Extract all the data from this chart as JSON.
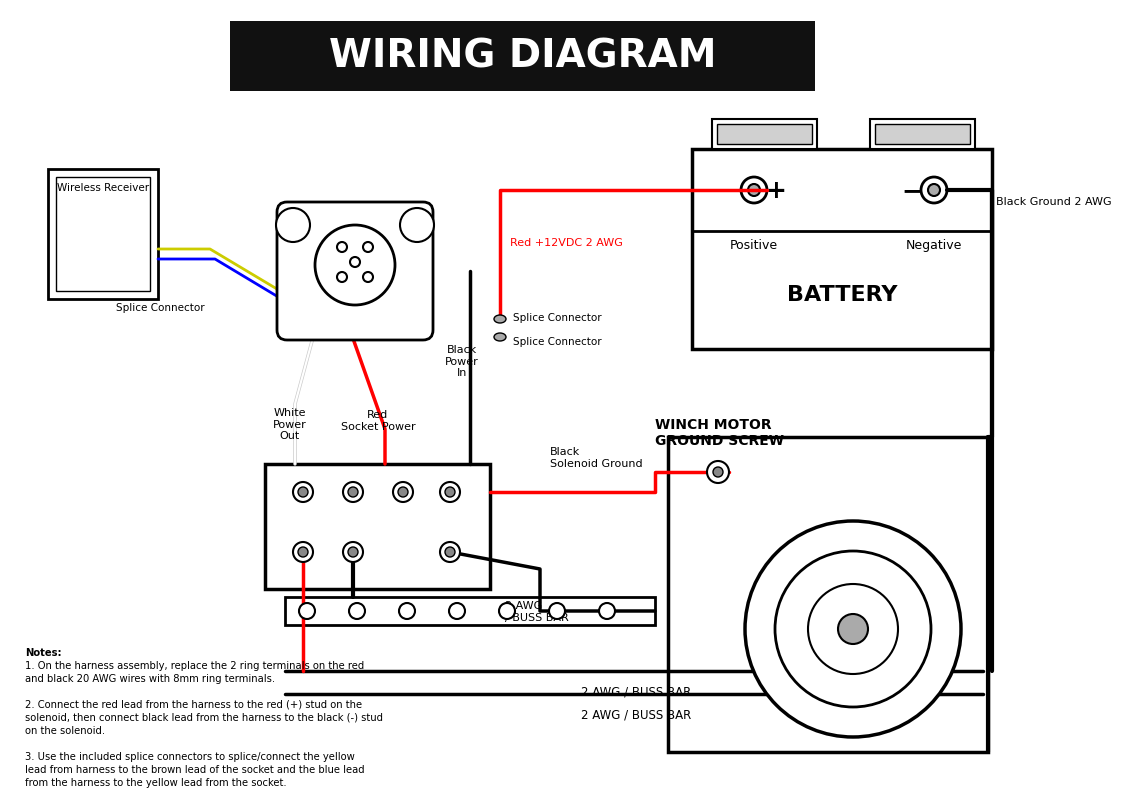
{
  "title": "WIRING DIAGRAM",
  "bg_color": "#ffffff",
  "title_bg": "#111111",
  "title_color": "#ffffff",
  "notes": [
    "Notes:",
    "1. On the harness assembly, replace the 2 ring terminals on the red",
    "and black 20 AWG wires with 8mm ring terminals.",
    "",
    "2. Connect the red lead from the harness to the red (+) stud on the",
    "solenoid, then connect black lead from the harness to the black (-) stud",
    "on the solenoid.",
    "",
    "3. Use the included splice connectors to splice/connect the yellow",
    "lead from harness to the brown lead of the socket and the blue lead",
    "from the harness to the yellow lead from the socket."
  ],
  "labels": {
    "wireless_receiver": "Wireless Receiver",
    "splice_connector1": "Splice Connector",
    "splice_connector2": "Splice Connector",
    "splice_connector3": "Splice Connector",
    "white_power_out": "White\nPower\nOut",
    "red_socket_power": "Red\nSocket Power",
    "black_power_in": "Black\nPower\nIn",
    "black_solenoid_ground": "Black\nSolenoid Ground",
    "red_12vdc": "Red +12VDC 2 AWG",
    "black_ground": "Black Ground 2 AWG",
    "positive": "Positive",
    "negative": "Negative",
    "battery": "BATTERY",
    "winch_motor_ground": "WINCH MOTOR\nGROUND SCREW",
    "buss_bar1": "2 AWG\n/ BUSS BAR",
    "buss_bar2": "2 AWG / BUSS BAR",
    "buss_bar3": "2 AWG / BUSS BAR"
  }
}
